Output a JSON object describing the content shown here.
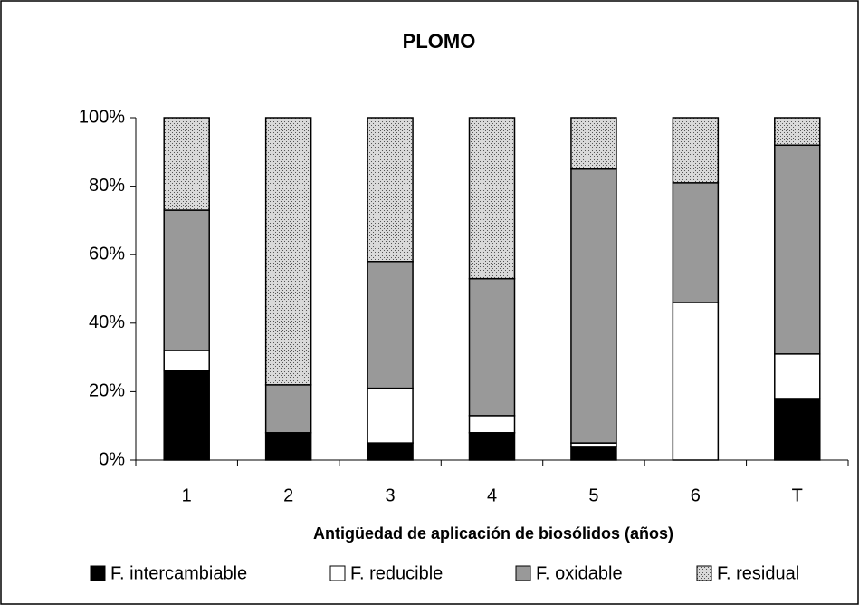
{
  "chart_data": {
    "type": "stacked_bar",
    "title": "PLOMO",
    "x_label": "Antigüedad de aplicación de biosólidos (años)",
    "categories": [
      "1",
      "2",
      "3",
      "4",
      "5",
      "6",
      "T"
    ],
    "series": [
      {
        "name": "F. intercambiable",
        "color": "#000000",
        "values": [
          26,
          8,
          5,
          8,
          4,
          0,
          18
        ]
      },
      {
        "name": "F. reducible",
        "color": "#ffffff",
        "values": [
          6,
          0,
          16,
          5,
          1,
          46,
          13
        ]
      },
      {
        "name": "F. oxidable",
        "color": "#999999",
        "values": [
          41,
          14,
          37,
          40,
          80,
          35,
          61
        ]
      },
      {
        "name": "F. residual",
        "color": "#d9d9d9",
        "values": [
          27,
          78,
          42,
          47,
          15,
          19,
          8
        ]
      }
    ],
    "ylim": [
      0,
      100
    ],
    "yticks": [
      {
        "value": 0,
        "label": "0%"
      },
      {
        "value": 20,
        "label": "20%"
      },
      {
        "value": 40,
        "label": "40%"
      },
      {
        "value": 60,
        "label": "60%"
      },
      {
        "value": 80,
        "label": "80%"
      },
      {
        "value": 100,
        "label": "100%"
      }
    ],
    "legend": "bottom"
  }
}
